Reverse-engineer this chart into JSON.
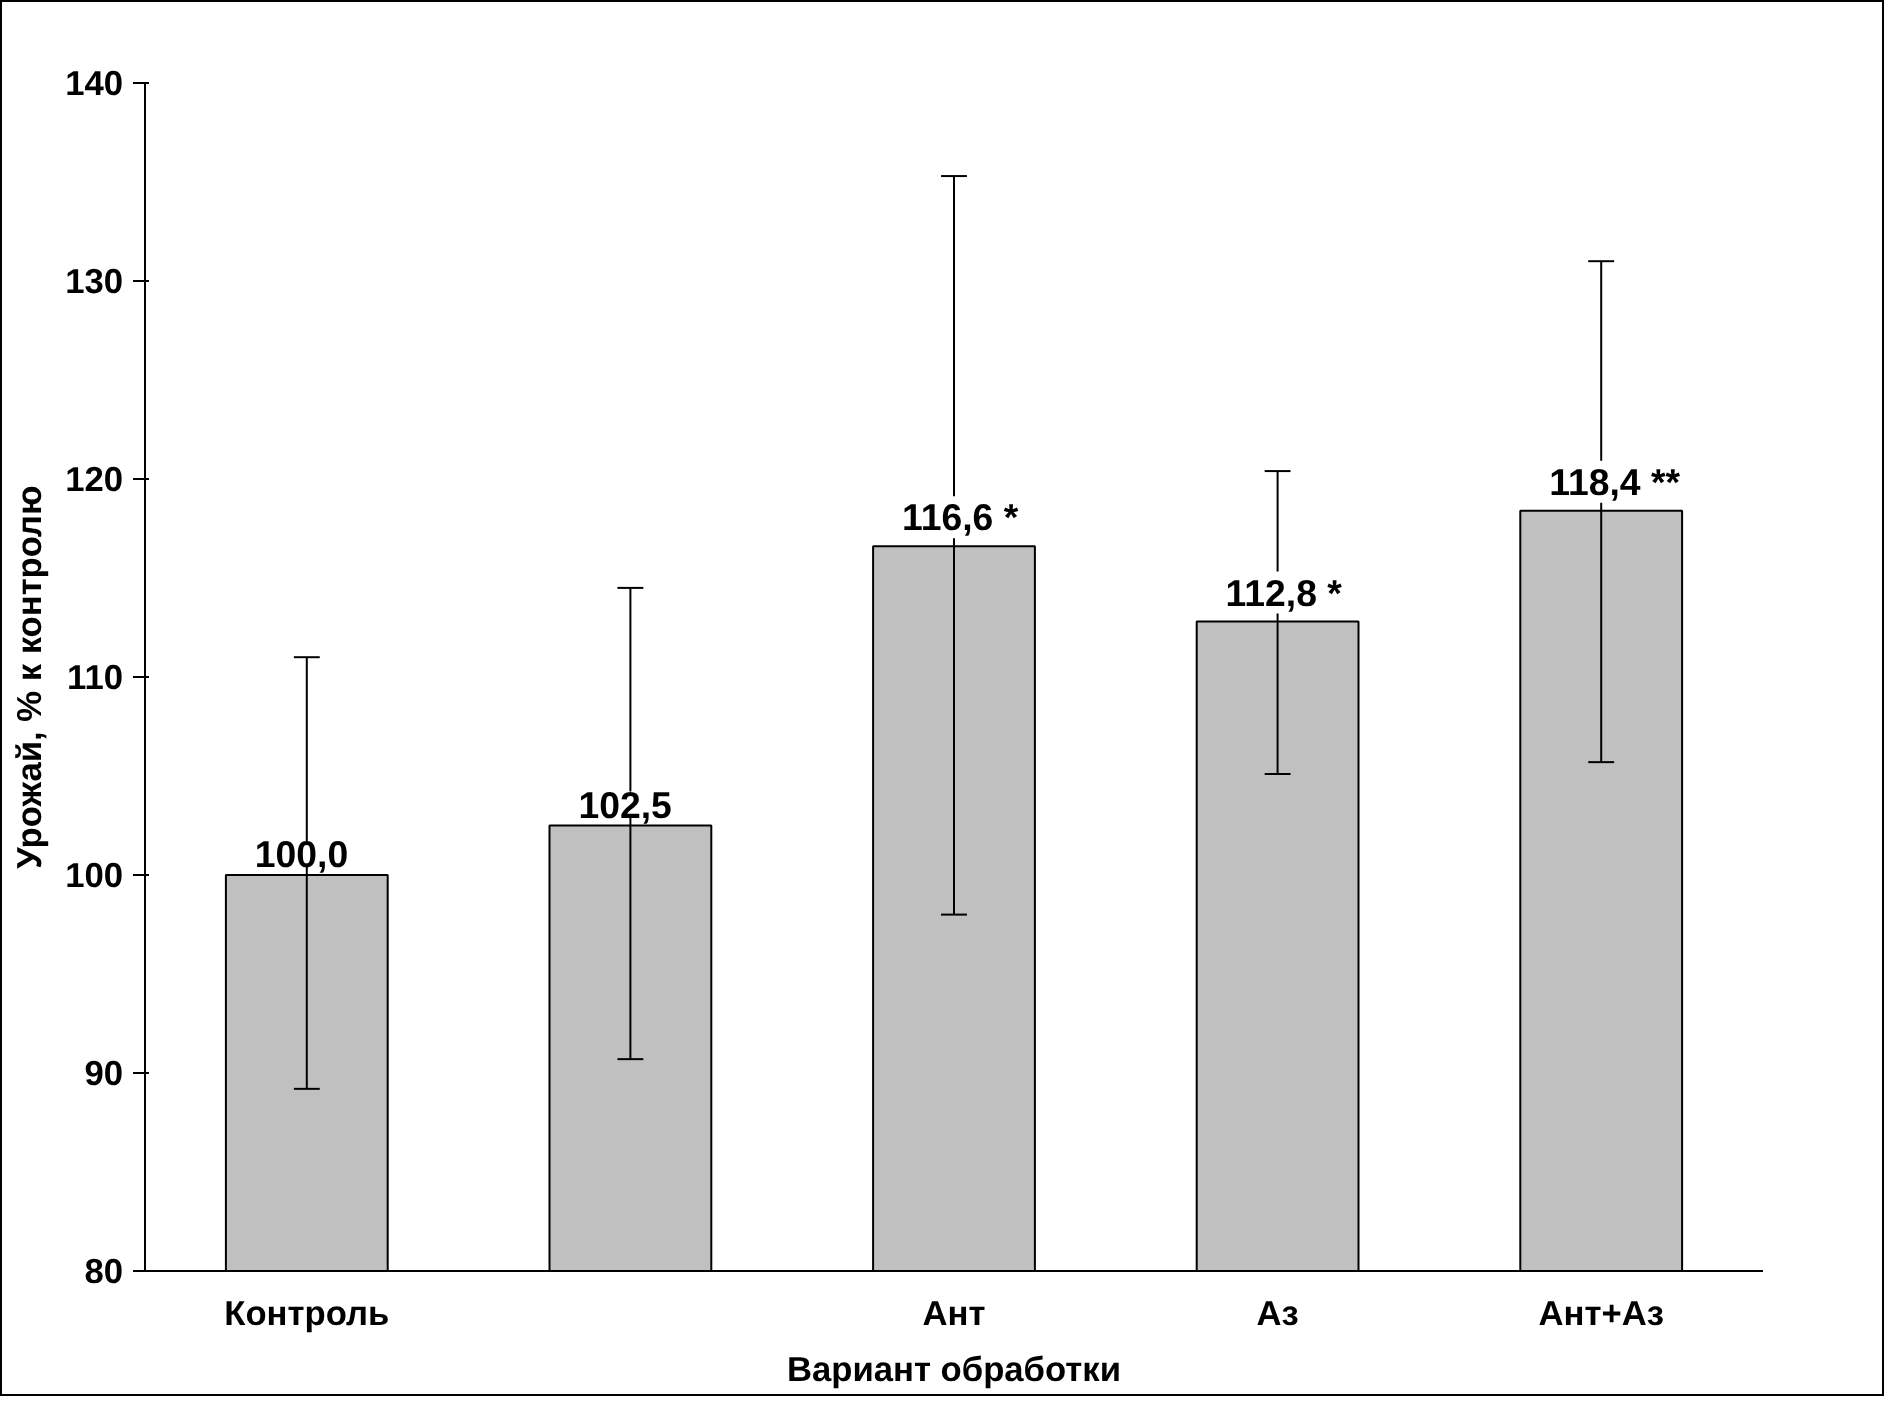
{
  "chart_data": {
    "type": "bar",
    "xlabel": "Вариант обработки",
    "ylabel": "Урожай, % к контролю",
    "categories": [
      "Контроль",
      null,
      "Ант",
      "Аз",
      "Ант+Аз"
    ],
    "values": [
      100.0,
      102.5,
      116.6,
      112.8,
      118.4
    ],
    "color": "#c0c0c0",
    "errors": [
      [
        89.2,
        111.0
      ],
      [
        90.7,
        114.5
      ],
      [
        98.0,
        135.3
      ],
      [
        105.1,
        120.4
      ],
      [
        105.7,
        131.0
      ]
    ],
    "value_labels": [
      "100,0",
      "102,5",
      "116,6 *",
      "112,8 *",
      "118,4 **"
    ],
    "ylim": [
      80,
      140
    ],
    "yticks": [
      80,
      90,
      100,
      110,
      120,
      130,
      140
    ],
    "grid": false
  }
}
